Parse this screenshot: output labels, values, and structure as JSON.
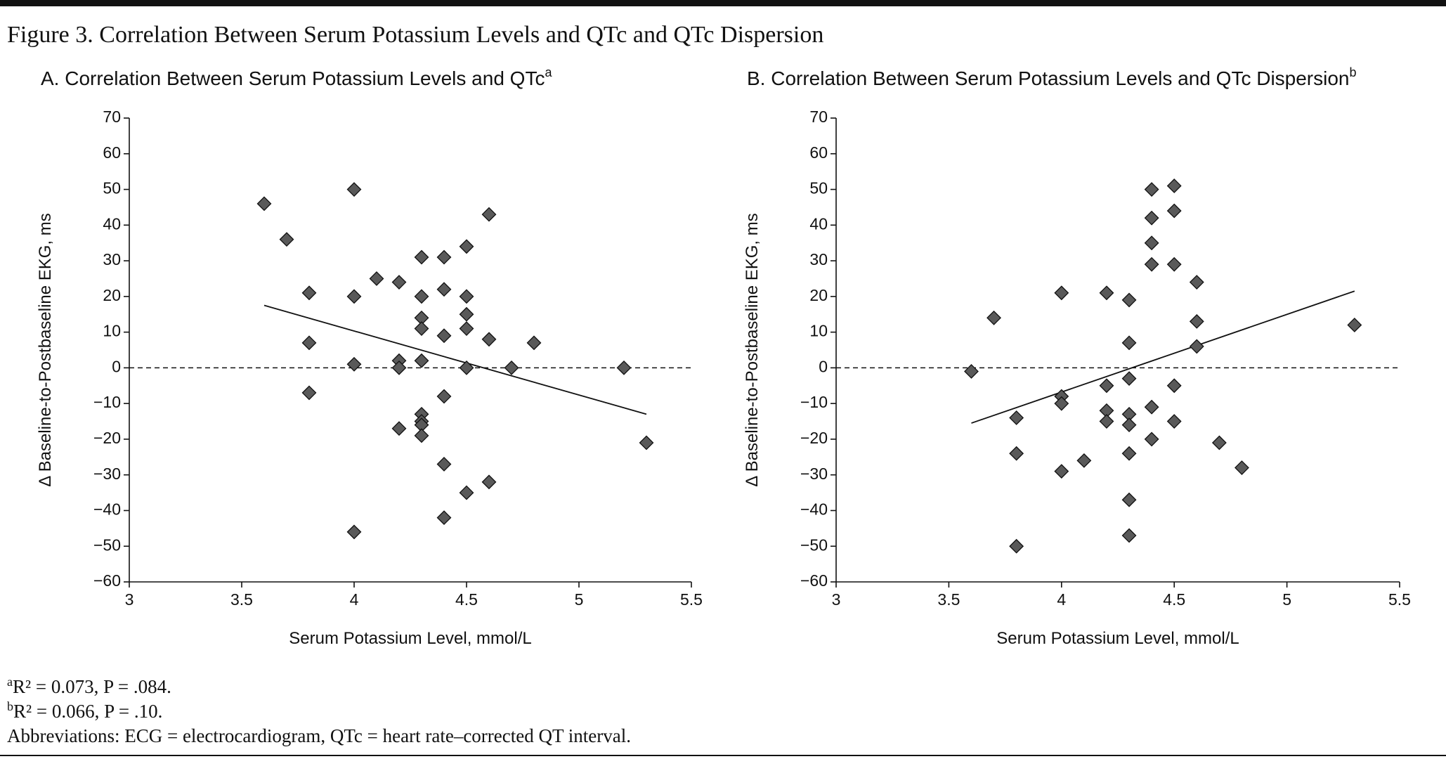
{
  "figure_title": "Figure 3. Correlation Between Serum Potassium Levels and QTc and QTc Dispersion",
  "chart_data": [
    {
      "type": "scatter",
      "title": "A. Correlation Between Serum Potassium Levels and QTc",
      "title_sup": "a",
      "x_label": "Serum Potassium Level, mmol/L",
      "y_label": "Δ Baseline-to-Postbaseline EKG, ms",
      "color": "#595959",
      "x": [
        3.6,
        3.7,
        3.8,
        3.8,
        3.8,
        4.0,
        4.0,
        4.0,
        4.0,
        4.1,
        4.2,
        4.2,
        4.2,
        4.2,
        4.3,
        4.3,
        4.3,
        4.3,
        4.3,
        4.3,
        4.3,
        4.3,
        4.3,
        4.4,
        4.4,
        4.4,
        4.4,
        4.4,
        4.4,
        4.5,
        4.5,
        4.5,
        4.5,
        4.5,
        4.5,
        4.6,
        4.6,
        4.6,
        4.7,
        4.8,
        5.2,
        5.3
      ],
      "values": [
        46,
        36,
        21,
        7,
        -7,
        50,
        20,
        1,
        -46,
        25,
        24,
        2,
        0,
        -17,
        31,
        20,
        14,
        11,
        2,
        -13,
        -15,
        -16,
        -19,
        31,
        22,
        9,
        -8,
        -27,
        -42,
        34,
        20,
        15,
        11,
        0,
        -35,
        43,
        8,
        -32,
        0,
        7,
        0,
        -21
      ],
      "trendline": {
        "x": [
          3.6,
          5.3
        ],
        "y": [
          17.5,
          -13
        ]
      },
      "reference_y": 0,
      "xlim": [
        3,
        5.5
      ],
      "xticks": [
        3,
        3.5,
        4,
        4.5,
        5,
        5.5
      ],
      "ylim": [
        -60,
        70
      ],
      "yticks": [
        {
          "value": -60,
          "label": "−60"
        },
        {
          "value": -50,
          "label": "−50"
        },
        {
          "value": -40,
          "label": "−40"
        },
        {
          "value": -30,
          "label": "−30"
        },
        {
          "value": -20,
          "label": "−20"
        },
        {
          "value": -10,
          "label": "−10"
        },
        0,
        10,
        20,
        30,
        40,
        50,
        60,
        70
      ]
    },
    {
      "type": "scatter",
      "title": "B. Correlation Between Serum Potassium Levels and QTc Dispersion",
      "title_sup": "b",
      "x_label": "Serum Potassium Level, mmol/L",
      "y_label": "Δ Baseline-to-Postbaseline EKG, ms",
      "color": "#595959",
      "x": [
        3.6,
        3.7,
        3.8,
        3.8,
        3.8,
        4.0,
        4.0,
        4.0,
        4.0,
        4.1,
        4.2,
        4.2,
        4.2,
        4.2,
        4.3,
        4.3,
        4.3,
        4.3,
        4.3,
        4.3,
        4.3,
        4.3,
        4.4,
        4.4,
        4.4,
        4.4,
        4.4,
        4.4,
        4.5,
        4.5,
        4.5,
        4.5,
        4.5,
        4.6,
        4.6,
        4.6,
        4.7,
        4.8,
        5.3
      ],
      "values": [
        -1,
        14,
        -14,
        -24,
        -50,
        21,
        -8,
        -10,
        -29,
        -26,
        21,
        -5,
        -12,
        -15,
        19,
        7,
        -3,
        -13,
        -16,
        -24,
        -37,
        -47,
        50,
        42,
        35,
        29,
        -11,
        -20,
        51,
        44,
        29,
        -5,
        -15,
        24,
        13,
        6,
        -21,
        -28,
        12
      ],
      "trendline": {
        "x": [
          3.6,
          5.3
        ],
        "y": [
          -15.5,
          21.5
        ]
      },
      "reference_y": 0,
      "xlim": [
        3,
        5.5
      ],
      "xticks": [
        3,
        3.5,
        4,
        4.5,
        5,
        5.5
      ],
      "ylim": [
        -60,
        70
      ],
      "yticks": [
        {
          "value": -60,
          "label": "−60"
        },
        {
          "value": -50,
          "label": "−50"
        },
        {
          "value": -40,
          "label": "−40"
        },
        {
          "value": -30,
          "label": "−30"
        },
        {
          "value": -20,
          "label": "−20"
        },
        {
          "value": -10,
          "label": "−10"
        },
        0,
        10,
        20,
        30,
        40,
        50,
        60,
        70
      ]
    }
  ],
  "footnotes": [
    {
      "marker": "a",
      "text": "R² = 0.073, P = .084."
    },
    {
      "marker": "b",
      "text": "R² = 0.066, P = .10."
    },
    {
      "marker": "",
      "text": "Abbreviations: ECG = electrocardiogram, QTc = heart rate–corrected QT interval."
    }
  ]
}
